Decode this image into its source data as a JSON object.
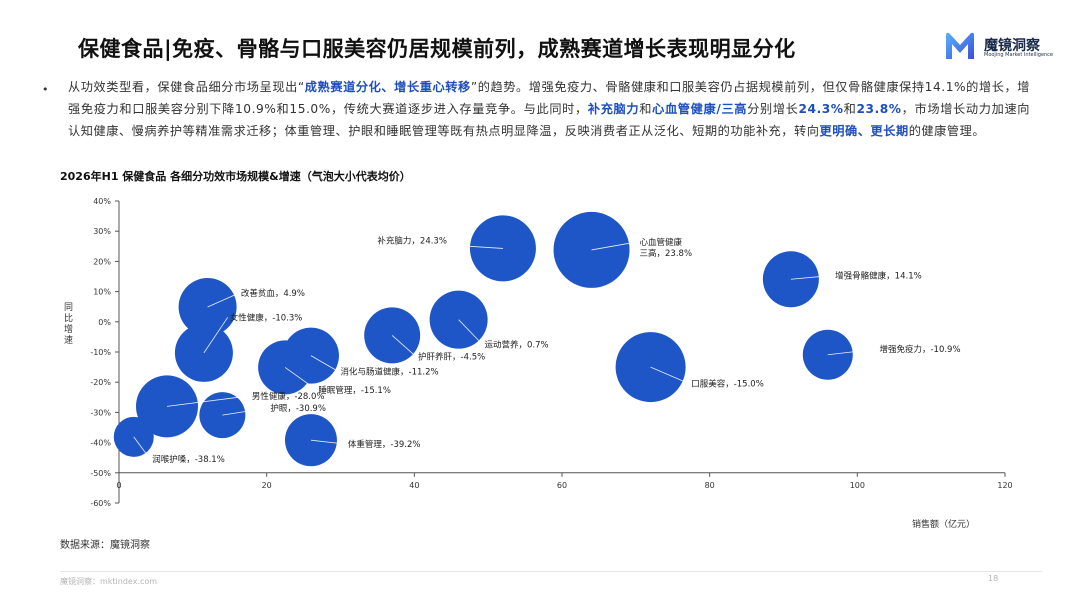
{
  "header": {
    "title": "保健食品|免疫、骨骼与口服美容仍居规模前列，成熟赛道增长表现明显分化",
    "logo_name": "魔镜洞察",
    "logo_sub": "Moojing Market Intelligence"
  },
  "summary": {
    "bullet": "•",
    "segments": [
      {
        "t": "从功效类型看，保健食品细分市场呈现出“",
        "hl": false
      },
      {
        "t": "成熟赛道分化、增长重心转移",
        "hl": true
      },
      {
        "t": "”的趋势。增强免疫力、骨骼健康和口服美容仍占据规模前列，但仅骨骼健康保持14.1%的增长，增强免疫力和口服美容分别下降10.9%和15.0%，传统大赛道逐步进入存量竞争。与此同时，",
        "hl": false
      },
      {
        "t": "补充脑力",
        "hl": true
      },
      {
        "t": "和",
        "hl": false
      },
      {
        "t": "心血管健康/三高",
        "hl": true
      },
      {
        "t": "分别增长",
        "hl": false
      },
      {
        "t": "24.3%",
        "hl": true
      },
      {
        "t": "和",
        "hl": false
      },
      {
        "t": "23.8%",
        "hl": true
      },
      {
        "t": "，市场增长动力加速向认知健康、慢病养护等精准需求迁移；体重管理、护眼和睡眠管理等既有热点明显降温，反映消费者正从泛化、短期的功能补充，转向",
        "hl": false
      },
      {
        "t": "更明确、更长期",
        "hl": true
      },
      {
        "t": "的健康管理。",
        "hl": false
      }
    ]
  },
  "chart_title": "2026年H1 保健食品 各细分功效市场规模&增速（气泡大小代表均价）",
  "chart_data": {
    "type": "scatter",
    "variant": "bubble",
    "xlabel": "销售额（亿元）",
    "ylabel": "同比增速",
    "xlim": [
      0,
      120
    ],
    "ylim": [
      -60,
      40
    ],
    "x_ticks": [
      0,
      20,
      40,
      60,
      80,
      100,
      120
    ],
    "y_ticks": [
      40,
      30,
      20,
      10,
      0,
      -10,
      -20,
      -30,
      -40,
      -50,
      -60
    ],
    "y_tick_labels": [
      "40%",
      "30%",
      "20%",
      "10%",
      "0%",
      "-10%",
      "-20%",
      "-30%",
      "-40%",
      "-50%",
      "-60%"
    ],
    "bubble_color": "#1f56c7",
    "grid": false,
    "points": [
      {
        "label": "增强免疫力，-10.9%",
        "x": 96.0,
        "y": -10.9,
        "size": 25,
        "lx": 103.0,
        "ly": -10.0
      },
      {
        "label": "增强骨骼健康，14.1%",
        "x": 91.0,
        "y": 14.1,
        "size": 28,
        "lx": 97.0,
        "ly": 14.4
      },
      {
        "label": "口服美容，-15.0%",
        "x": 72.0,
        "y": -15.0,
        "size": 35,
        "lx": 77.5,
        "ly": -21.5
      },
      {
        "label": "心血管健康\n三高，23.8%",
        "x": 64.0,
        "y": 23.8,
        "size": 38,
        "lx": 70.5,
        "ly": 25.5
      },
      {
        "label": "补充脑力，24.3%",
        "x": 52.0,
        "y": 24.3,
        "size": 33,
        "lx": 35.0,
        "ly": 26.0
      },
      {
        "label": "运动营养，0.7%",
        "x": 46.0,
        "y": 0.7,
        "size": 29,
        "lx": 49.5,
        "ly": -8.5
      },
      {
        "label": "护肝养肝，-4.5%",
        "x": 37.0,
        "y": -4.5,
        "size": 28,
        "lx": 40.5,
        "ly": -12.5
      },
      {
        "label": "消化与肠道健康，-11.2%",
        "x": 26.0,
        "y": -11.2,
        "size": 28,
        "lx": 30.0,
        "ly": -17.5
      },
      {
        "label": "睡眠管理，-15.1%",
        "x": 22.5,
        "y": -15.1,
        "size": 27,
        "lx": 27.0,
        "ly": -23.5
      },
      {
        "label": "改善贫血，4.9%",
        "x": 12.0,
        "y": 4.9,
        "size": 29,
        "lx": 16.5,
        "ly": 8.5
      },
      {
        "label": "女性健康，-10.3%",
        "x": 11.5,
        "y": -10.3,
        "size": 29,
        "lx": 15.0,
        "ly": 0.5
      },
      {
        "label": "男性健康，-28.0%",
        "x": 6.5,
        "y": -28.0,
        "size": 31,
        "lx": 18.0,
        "ly": -25.5
      },
      {
        "label": "护眼，-30.9%",
        "x": 14.0,
        "y": -30.9,
        "size": 23,
        "lx": 20.5,
        "ly": -29.5
      },
      {
        "label": "体重管理，-39.2%",
        "x": 26.0,
        "y": -39.2,
        "size": 26,
        "lx": 31.0,
        "ly": -41.5
      },
      {
        "label": "润喉护嗓，-38.1%",
        "x": 2.0,
        "y": -38.1,
        "size": 20,
        "lx": 4.5,
        "ly": -46.5
      }
    ]
  },
  "footer": {
    "source": "数据来源：魔镜洞察",
    "site": "魔镜洞察：mktindex.com",
    "page": "18"
  }
}
